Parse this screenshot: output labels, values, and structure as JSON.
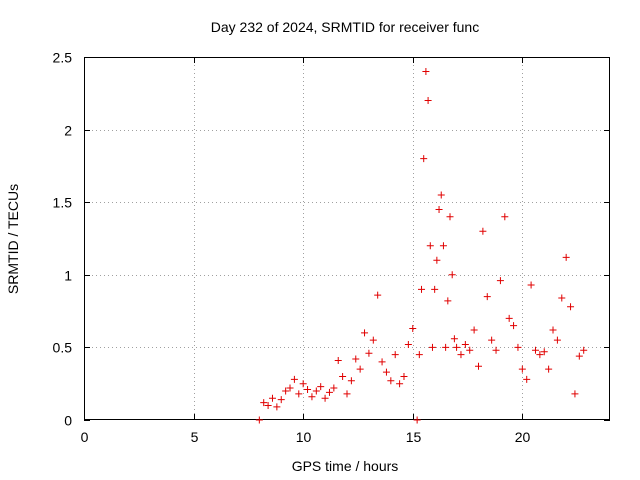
{
  "chart_data": {
    "type": "scatter",
    "title": "Day 232 of 2024, SRMTID for receiver func",
    "xlabel": "GPS time / hours",
    "ylabel": "SRMTID / TECUs",
    "xlim": [
      0,
      24
    ],
    "ylim": [
      0,
      2.5
    ],
    "xticks": [
      0,
      5,
      10,
      15,
      20
    ],
    "yticks": [
      0,
      0.5,
      1,
      1.5,
      2,
      2.5
    ],
    "xtick_labels": [
      "0",
      "5",
      "10",
      "15",
      "20"
    ],
    "ytick_labels": [
      "0",
      "0.5",
      "1",
      "1.5",
      "2",
      "2.5"
    ],
    "grid": true,
    "marker": "+",
    "color": "#e00000",
    "series": [
      {
        "name": "SRMTID",
        "x": [
          8.0,
          8.2,
          8.4,
          8.6,
          8.8,
          9.0,
          9.2,
          9.4,
          9.6,
          9.8,
          10.0,
          10.2,
          10.4,
          10.6,
          10.8,
          11.0,
          11.2,
          11.4,
          11.6,
          11.8,
          12.0,
          12.2,
          12.4,
          12.6,
          12.8,
          13.0,
          13.2,
          13.4,
          13.6,
          13.8,
          14.0,
          14.2,
          14.4,
          14.6,
          14.8,
          15.0,
          15.2,
          15.3,
          15.4,
          15.5,
          15.6,
          15.7,
          15.8,
          15.9,
          16.0,
          16.1,
          16.2,
          16.3,
          16.4,
          16.5,
          16.6,
          16.7,
          16.8,
          16.9,
          17.0,
          17.2,
          17.4,
          17.6,
          17.8,
          18.0,
          18.2,
          18.4,
          18.6,
          18.8,
          19.0,
          19.2,
          19.4,
          19.6,
          19.8,
          20.0,
          20.2,
          20.4,
          20.6,
          20.8,
          21.0,
          21.2,
          21.4,
          21.6,
          21.8,
          22.0,
          22.2,
          22.4,
          22.6,
          22.8
        ],
        "y": [
          0.0,
          0.12,
          0.1,
          0.15,
          0.09,
          0.14,
          0.2,
          0.22,
          0.28,
          0.18,
          0.25,
          0.21,
          0.16,
          0.2,
          0.23,
          0.15,
          0.19,
          0.22,
          0.41,
          0.3,
          0.18,
          0.27,
          0.42,
          0.35,
          0.6,
          0.46,
          0.55,
          0.86,
          0.4,
          0.33,
          0.27,
          0.45,
          0.25,
          0.3,
          0.52,
          0.63,
          0.0,
          0.45,
          0.9,
          1.8,
          2.4,
          2.2,
          1.2,
          0.5,
          0.9,
          1.1,
          1.45,
          1.55,
          1.2,
          0.5,
          0.82,
          1.4,
          1.0,
          0.56,
          0.5,
          0.45,
          0.52,
          0.48,
          0.62,
          0.37,
          1.3,
          0.85,
          0.55,
          0.48,
          0.96,
          1.4,
          0.7,
          0.65,
          0.5,
          0.35,
          0.28,
          0.93,
          0.48,
          0.45,
          0.47,
          0.35,
          0.62,
          0.55,
          0.84,
          1.12,
          0.78,
          0.18,
          0.44,
          0.48
        ]
      }
    ]
  }
}
